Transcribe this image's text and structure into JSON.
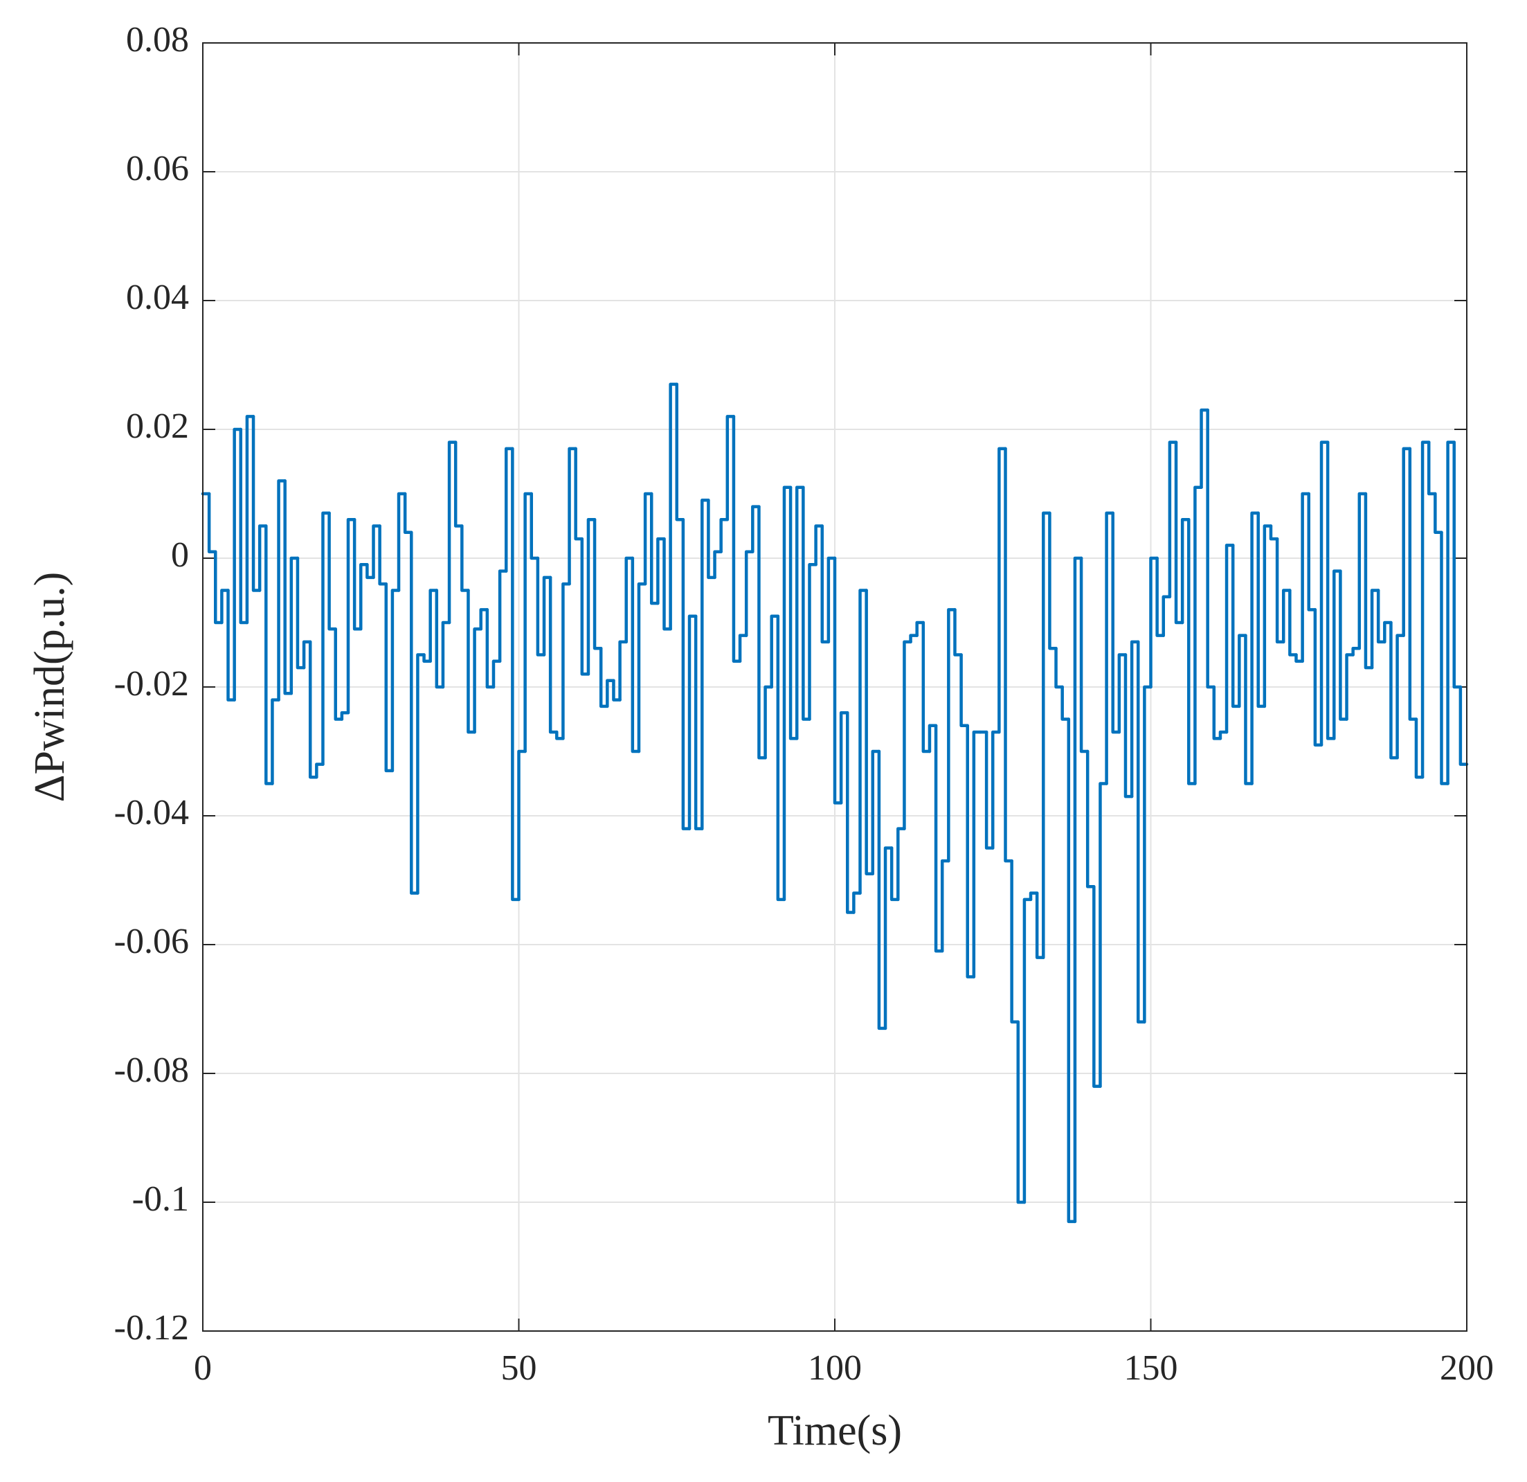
{
  "chart_data": {
    "type": "line",
    "step": "post",
    "xlabel": "Time(s)",
    "ylabel": "ΔPwind(p.u.)",
    "color": "#0072bd",
    "grid": true,
    "xlim": [
      0,
      200
    ],
    "ylim": [
      -0.12,
      0.08
    ],
    "xticks": [
      0,
      50,
      100,
      150,
      200
    ],
    "yticks": [
      0.08,
      0.06,
      0.04,
      0.02,
      0,
      -0.02,
      -0.04,
      -0.06,
      -0.08,
      -0.1,
      -0.12
    ],
    "x": [
      0,
      1,
      2,
      3,
      4,
      5,
      6,
      7,
      8,
      9,
      10,
      11,
      12,
      13,
      14,
      15,
      16,
      17,
      18,
      19,
      20,
      21,
      22,
      23,
      24,
      25,
      26,
      27,
      28,
      29,
      30,
      31,
      32,
      33,
      34,
      35,
      36,
      37,
      38,
      39,
      40,
      41,
      42,
      43,
      44,
      45,
      46,
      47,
      48,
      49,
      50,
      51,
      52,
      53,
      54,
      55,
      56,
      57,
      58,
      59,
      60,
      61,
      62,
      63,
      64,
      65,
      66,
      67,
      68,
      69,
      70,
      71,
      72,
      73,
      74,
      75,
      76,
      77,
      78,
      79,
      80,
      81,
      82,
      83,
      84,
      85,
      86,
      87,
      88,
      89,
      90,
      91,
      92,
      93,
      94,
      95,
      96,
      97,
      98,
      99,
      100,
      101,
      102,
      103,
      104,
      105,
      106,
      107,
      108,
      109,
      110,
      111,
      112,
      113,
      114,
      115,
      116,
      117,
      118,
      119,
      120,
      121,
      122,
      123,
      124,
      125,
      126,
      127,
      128,
      129,
      130,
      131,
      132,
      133,
      134,
      135,
      136,
      137,
      138,
      139,
      140,
      141,
      142,
      143,
      144,
      145,
      146,
      147,
      148,
      149,
      150,
      151,
      152,
      153,
      154,
      155,
      156,
      157,
      158,
      159,
      160,
      161,
      162,
      163,
      164,
      165,
      166,
      167,
      168,
      169,
      170,
      171,
      172,
      173,
      174,
      175,
      176,
      177,
      178,
      179,
      180,
      181,
      182,
      183,
      184,
      185,
      186,
      187,
      188,
      189,
      190,
      191,
      192,
      193,
      194,
      195,
      196,
      197,
      198,
      199
    ],
    "values": [
      0.01,
      0.001,
      -0.01,
      -0.005,
      -0.022,
      0.02,
      -0.01,
      0.022,
      -0.005,
      0.005,
      -0.035,
      -0.022,
      0.012,
      -0.021,
      0,
      -0.017,
      -0.013,
      -0.034,
      -0.032,
      0.007,
      -0.011,
      -0.025,
      -0.024,
      0.006,
      -0.011,
      -0.001,
      -0.003,
      0.005,
      -0.004,
      -0.033,
      -0.005,
      0.01,
      0.004,
      -0.052,
      -0.015,
      -0.016,
      -0.005,
      -0.02,
      -0.01,
      0.018,
      0.005,
      -0.005,
      -0.027,
      -0.011,
      -0.008,
      -0.02,
      -0.016,
      -0.002,
      0.017,
      -0.053,
      -0.03,
      0.01,
      0,
      -0.015,
      -0.003,
      -0.027,
      -0.028,
      -0.004,
      0.017,
      0.003,
      -0.018,
      0.006,
      -0.014,
      -0.023,
      -0.019,
      -0.022,
      -0.013,
      0,
      -0.03,
      -0.004,
      0.01,
      -0.007,
      0.003,
      -0.011,
      0.027,
      0.006,
      -0.042,
      -0.009,
      -0.042,
      0.009,
      -0.003,
      0.001,
      0.006,
      0.022,
      -0.016,
      -0.012,
      0.001,
      0.008,
      -0.031,
      -0.02,
      -0.009,
      -0.053,
      0.011,
      -0.028,
      0.011,
      -0.025,
      -0.001,
      0.005,
      -0.013,
      0,
      -0.038,
      -0.024,
      -0.055,
      -0.052,
      -0.005,
      -0.049,
      -0.03,
      -0.073,
      -0.045,
      -0.053,
      -0.042,
      -0.013,
      -0.012,
      -0.01,
      -0.03,
      -0.026,
      -0.061,
      -0.047,
      -0.008,
      -0.015,
      -0.026,
      -0.065,
      -0.027,
      -0.027,
      -0.045,
      -0.027,
      0.017,
      -0.047,
      -0.072,
      -0.1,
      -0.053,
      -0.052,
      -0.062,
      0.007,
      -0.014,
      -0.02,
      -0.025,
      -0.103,
      0,
      -0.03,
      -0.051,
      -0.082,
      -0.035,
      0.007,
      -0.027,
      -0.015,
      -0.037,
      -0.013,
      -0.072,
      -0.02,
      0,
      -0.012,
      -0.006,
      0.018,
      -0.01,
      0.006,
      -0.035,
      0.011,
      0.023,
      -0.02,
      -0.028,
      -0.027,
      0.002,
      -0.023,
      -0.012,
      -0.035,
      0.007,
      -0.023,
      0.005,
      0.003,
      -0.013,
      -0.005,
      -0.015,
      -0.016,
      0.01,
      -0.008,
      -0.029,
      0.018,
      -0.028,
      -0.002,
      -0.025,
      -0.015,
      -0.014,
      0.01,
      -0.017,
      -0.005,
      -0.013,
      -0.01,
      -0.031,
      -0.012,
      0.017,
      -0.025,
      -0.034,
      0.018,
      0.01,
      0.004,
      -0.035,
      0.018,
      -0.02,
      -0.032
    ]
  }
}
